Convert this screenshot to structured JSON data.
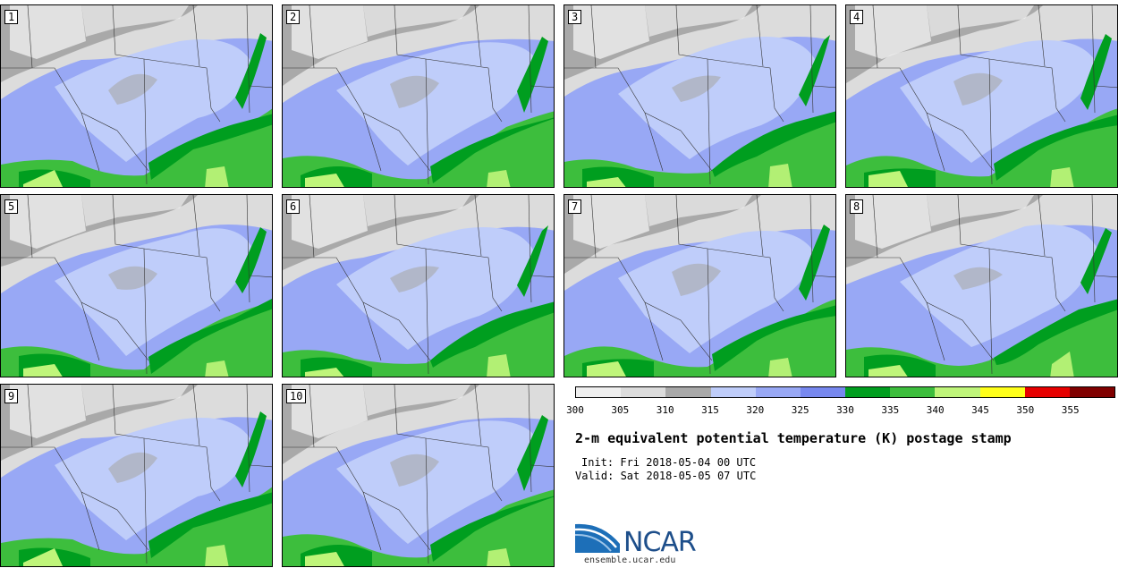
{
  "panels": [
    {
      "label": "1"
    },
    {
      "label": "2"
    },
    {
      "label": "3"
    },
    {
      "label": "4"
    },
    {
      "label": "5"
    },
    {
      "label": "6"
    },
    {
      "label": "7"
    },
    {
      "label": "8"
    },
    {
      "label": "9"
    },
    {
      "label": "10"
    }
  ],
  "colorbar": {
    "ticks": [
      "300",
      "305",
      "310",
      "315",
      "320",
      "325",
      "330",
      "335",
      "340",
      "345",
      "350",
      "355"
    ],
    "colors": [
      "#efefef",
      "#dcdcdc",
      "#a9a9a9",
      "#bfcdfa",
      "#98a8f5",
      "#7788ef",
      "#009e1f",
      "#3dbe3d",
      "#bff57a",
      "#ffff1a",
      "#e60000",
      "#800000"
    ]
  },
  "title": "2-m equivalent potential temperature (K) postage stamp",
  "init": "Init: Fri 2018-05-04 00 UTC",
  "valid": "Valid: Sat 2018-05-05 07 UTC",
  "logo": {
    "name": "NCAR",
    "url": "ensemble.ucar.edu"
  }
}
